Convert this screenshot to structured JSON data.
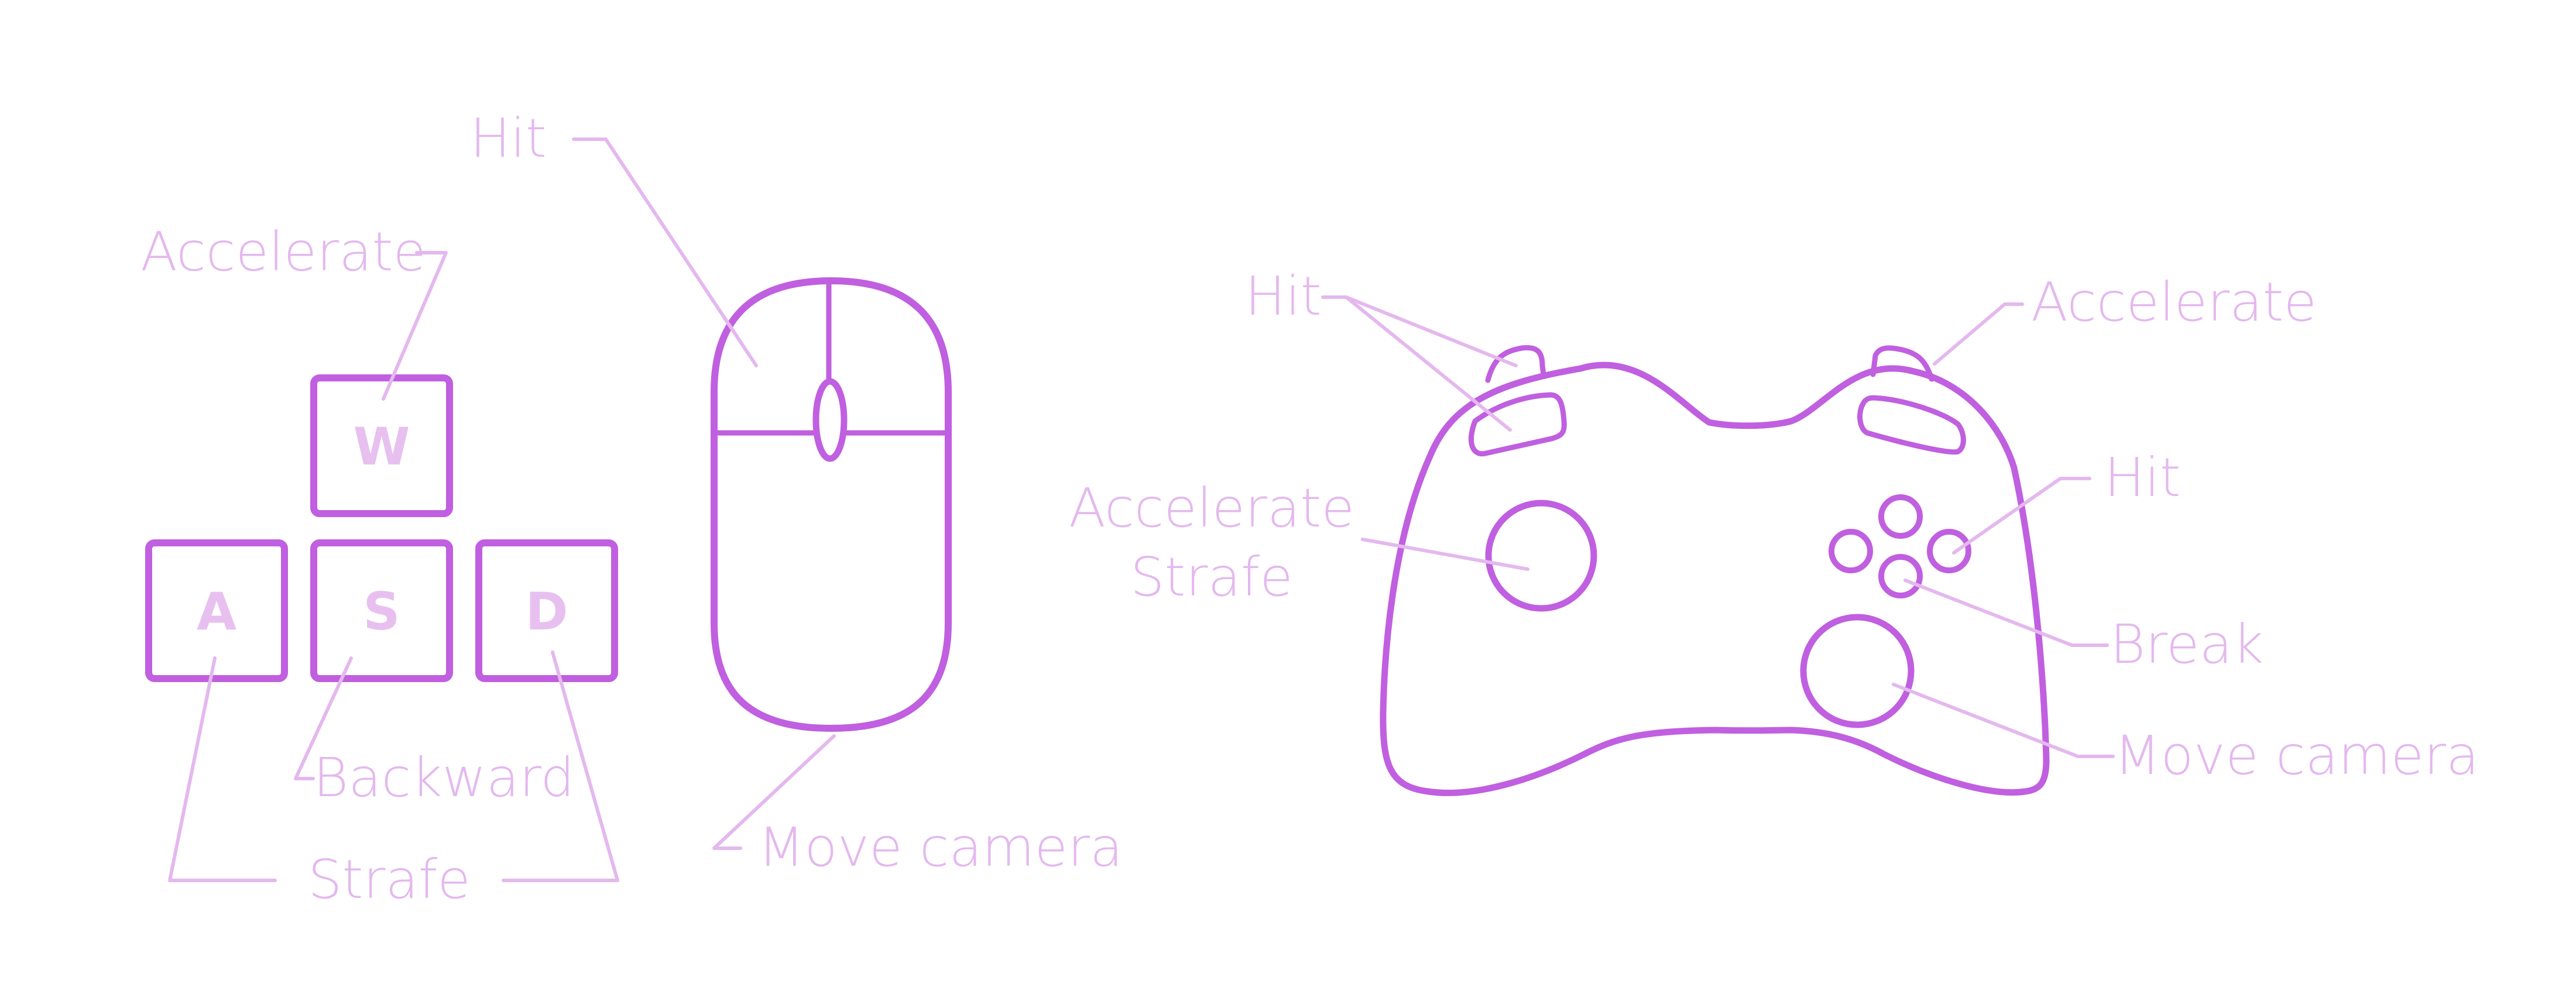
{
  "colors": {
    "device_stroke": "#c05fe0",
    "label": "#e4b8ee",
    "leader": "#e4b8ee",
    "keycap_letter": "#e7c0f0",
    "background": "#ffffff"
  },
  "keyboard": {
    "keys": {
      "w": "W",
      "a": "A",
      "s": "S",
      "d": "D"
    },
    "labels": {
      "accelerate": "Accelerate",
      "backward": "Backward",
      "strafe": "Strafe"
    }
  },
  "mouse": {
    "labels": {
      "hit": "Hit",
      "move_camera": "Move camera"
    }
  },
  "gamepad": {
    "labels": {
      "hit_bumpers": "Hit",
      "accelerate_trigger": "Accelerate",
      "accelerate_stick_line1": "Accelerate",
      "accelerate_stick_line2": "Strafe",
      "hit_button": "Hit",
      "break_button": "Break",
      "move_camera": "Move camera"
    }
  }
}
